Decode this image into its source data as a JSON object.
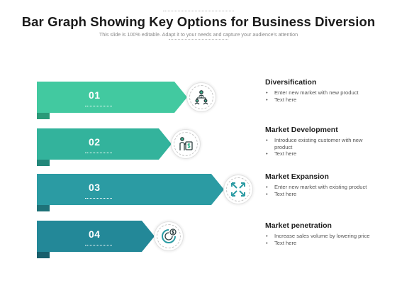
{
  "header": {
    "title": "Bar Graph Showing Key Options for Business Diversion",
    "subtitle": "This slide is 100% editable. Adapt it to your needs and capture your audience's attention"
  },
  "bars": [
    {
      "number": "01",
      "color": "#42c9a0",
      "fold_color": "#2a9a78",
      "icon": "business-team-icon"
    },
    {
      "number": "02",
      "color": "#33b39c",
      "fold_color": "#23877a",
      "icon": "presenter-dollar-icon"
    },
    {
      "number": "03",
      "color": "#2b9ba3",
      "fold_color": "#1e7278",
      "icon": "expand-arrows-icon"
    },
    {
      "number": "04",
      "color": "#238898",
      "fold_color": "#185f6c",
      "icon": "dollar-cycle-icon"
    }
  ],
  "options": [
    {
      "heading": "Diversification",
      "bullets": [
        "Enter new market with new product",
        "Text here"
      ]
    },
    {
      "heading": "Market Development",
      "bullets": [
        "Introduce existing customer with new product",
        "Text here"
      ]
    },
    {
      "heading": "Market Expansion",
      "bullets": [
        "Enter new market with existing product",
        "Text here"
      ]
    },
    {
      "heading": "Market penetration",
      "bullets": [
        "Increase sales volume by lowering price",
        "Text here"
      ]
    }
  ]
}
